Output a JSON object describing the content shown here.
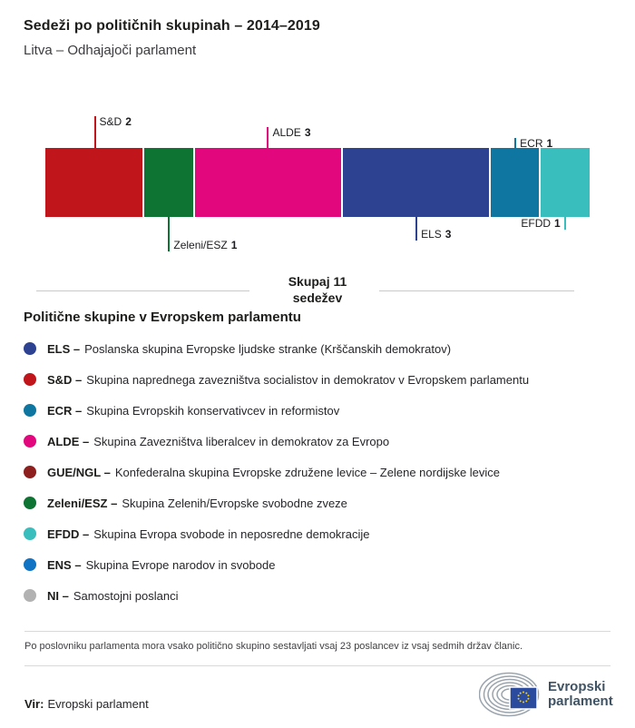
{
  "header": {
    "title": "Sedeži po političnih skupinah – 2014–2019",
    "subtitle": "Litva – Odhajajoči parlament"
  },
  "chart_data": {
    "type": "bar",
    "variant": "horizontal-stacked-seats",
    "title": "Sedeži po političnih skupinah – 2014–2019",
    "total_seats": 11,
    "segments": [
      {
        "group": "S&D",
        "seats": 2,
        "color": "#c0151b"
      },
      {
        "group": "Zeleni/ESZ",
        "seats": 1,
        "color": "#0d7433"
      },
      {
        "group": "ALDE",
        "seats": 3,
        "color": "#e3077e"
      },
      {
        "group": "ELS",
        "seats": 3,
        "color": "#2e4292"
      },
      {
        "group": "ECR",
        "seats": 1,
        "color": "#0e76a0"
      },
      {
        "group": "EFDD",
        "seats": 1,
        "color": "#3abdbd"
      }
    ]
  },
  "total": {
    "line1": "Skupaj 11",
    "line2": "sedežev"
  },
  "legend": {
    "title": "Politične skupine v Evropskem parlamentu",
    "items": [
      {
        "code": "ELS",
        "desc": "Poslanska skupina Evropske ljudske stranke (Krščanskih demokratov)",
        "color": "#2e4292"
      },
      {
        "code": "S&D",
        "desc": "Skupina naprednega zavezništva socialistov in demokratov v Evropskem parlamentu",
        "color": "#c0151b"
      },
      {
        "code": "ECR",
        "desc": "Skupina Evropskih konservativcev in reformistov",
        "color": "#0e76a0"
      },
      {
        "code": "ALDE",
        "desc": "Skupina Zavezništva liberalcev in demokratov za Evropo",
        "color": "#e3077e"
      },
      {
        "code": "GUE/NGL",
        "desc": "Konfederalna skupina Evropske združene levice – Zelene nordijske levice",
        "color": "#8e1f1f"
      },
      {
        "code": "Zeleni/ESZ",
        "desc": "Skupina Zelenih/Evropske svobodne zveze",
        "color": "#0d7433"
      },
      {
        "code": "EFDD",
        "desc": "Skupina Evropa svobode in neposredne demokracije",
        "color": "#3abdbd"
      },
      {
        "code": "ENS",
        "desc": "Skupina Evrope narodov in svobode",
        "color": "#1173c4"
      },
      {
        "code": "NI",
        "desc": "Samostojni poslanci",
        "color": "#b2b2b2"
      }
    ]
  },
  "footnote": "Po poslovniku parlamenta mora vsako politično skupino sestavljati vsaj 23 poslancev iz vsaj sedmih držav članic.",
  "source": {
    "label": "Vir:",
    "text": "Evropski parlament"
  },
  "logo": {
    "line1": "Evropski",
    "line2": "parlament",
    "flag_color": "#2a4b9e",
    "star_color": "#f7d117",
    "arc_color": "#9aa4ad"
  }
}
